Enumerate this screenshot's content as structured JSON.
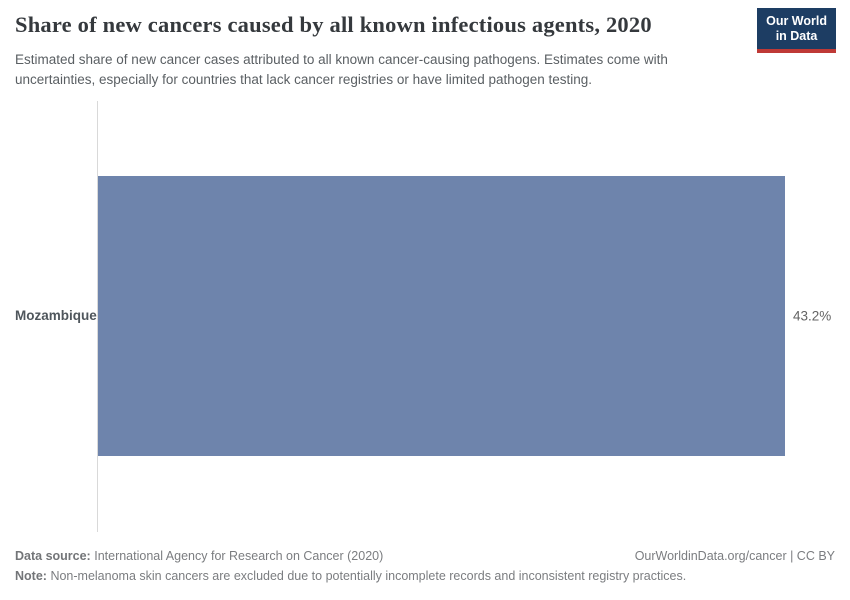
{
  "header": {
    "title": "Share of new cancers caused by all known infectious agents, 2020",
    "subtitle": "Estimated share of new cancer cases attributed to all known cancer-causing pathogens. Estimates come with uncertainties, especially for countries that lack cancer registries or have limited pathogen testing.",
    "logo": {
      "line1": "Our World",
      "line2": "in Data",
      "bg": "#1d3d63",
      "accent": "#bf3936"
    }
  },
  "chart_data": {
    "type": "bar",
    "orientation": "horizontal",
    "title": "Share of new cancers caused by all known infectious agents, 2020",
    "categories": [
      "Mozambique"
    ],
    "values": [
      43.2
    ],
    "value_labels": [
      "43.2%"
    ],
    "xlabel": "",
    "ylabel": "",
    "xlim": [
      0,
      43.2
    ],
    "unit": "%",
    "bar_color": "#6e84ac",
    "grid": false,
    "legend": false
  },
  "footer": {
    "data_source_label": "Data source:",
    "data_source": "International Agency for Research on Cancer (2020)",
    "attribution": "OurWorldinData.org/cancer | CC BY",
    "note_label": "Note:",
    "note": "Non-melanoma skin cancers are excluded due to potentially incomplete records and inconsistent registry practices."
  }
}
